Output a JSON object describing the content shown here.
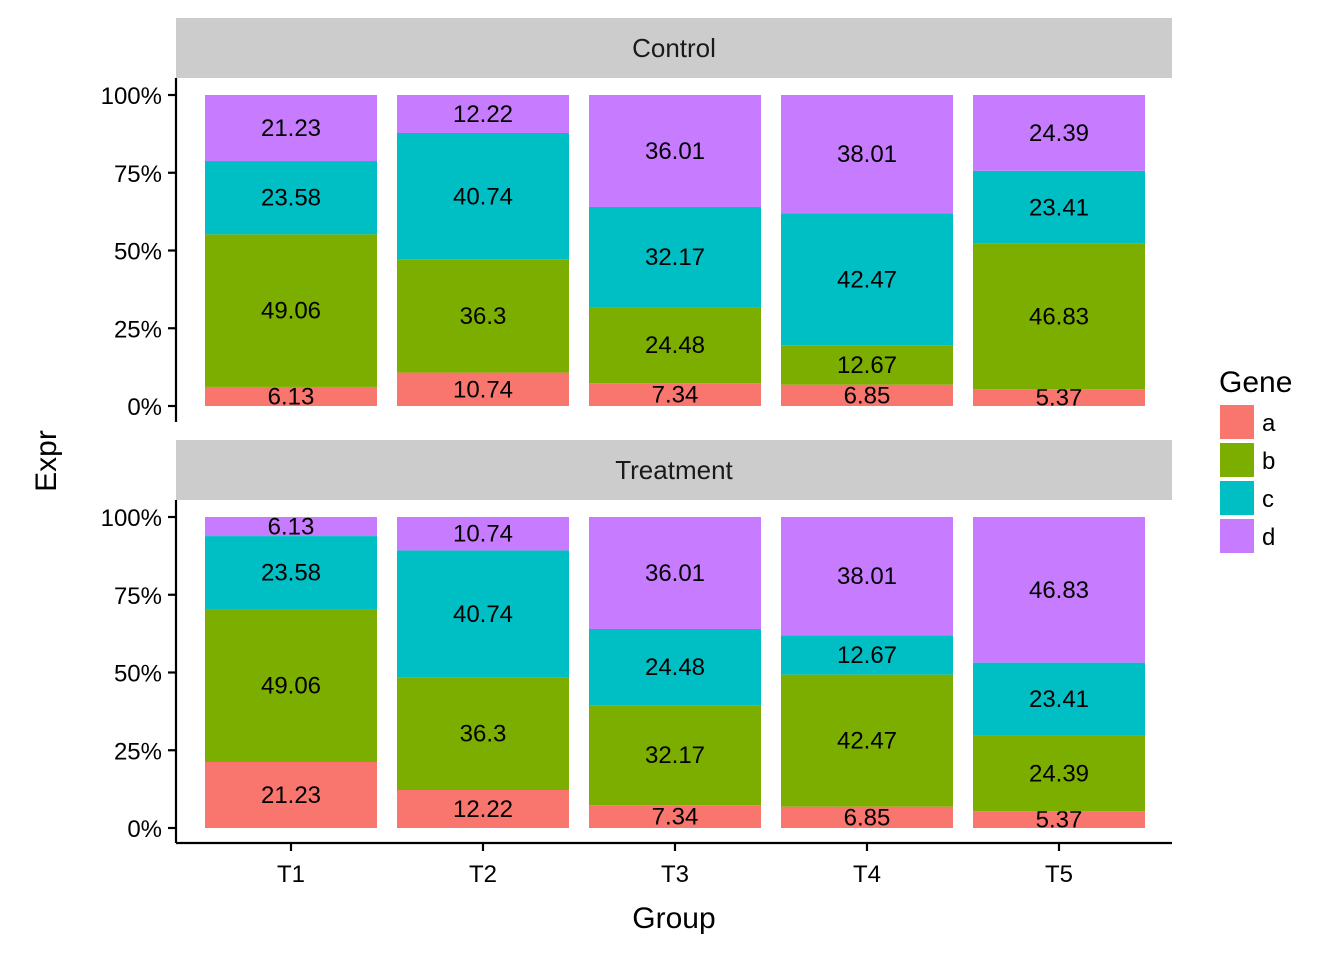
{
  "chart_data": {
    "type": "bar",
    "stacked": "percent",
    "categories": [
      "T1",
      "T2",
      "T3",
      "T4",
      "T5"
    ],
    "xlabel": "Group",
    "ylabel": "Expr",
    "ylim": [
      0,
      100
    ],
    "yticks": [
      "0%",
      "25%",
      "50%",
      "75%",
      "100%"
    ],
    "legend": {
      "title": "Gene",
      "position": "right",
      "entries": [
        "a",
        "b",
        "c",
        "d"
      ]
    },
    "colors": {
      "a": "#F8766D",
      "b": "#7CAE00",
      "c": "#00BFC4",
      "d": "#C77CFF"
    },
    "grid": false,
    "panels": [
      {
        "name": "Control",
        "series": [
          {
            "name": "a",
            "values": [
              6.13,
              10.74,
              7.34,
              6.85,
              5.37
            ]
          },
          {
            "name": "b",
            "values": [
              49.06,
              36.3,
              24.48,
              12.67,
              46.83
            ]
          },
          {
            "name": "c",
            "values": [
              23.58,
              40.74,
              32.17,
              42.47,
              23.41
            ]
          },
          {
            "name": "d",
            "values": [
              21.23,
              12.22,
              36.01,
              38.01,
              24.39
            ]
          }
        ]
      },
      {
        "name": "Treatment",
        "series": [
          {
            "name": "a",
            "values": [
              21.23,
              12.22,
              7.34,
              6.85,
              5.37
            ]
          },
          {
            "name": "b",
            "values": [
              49.06,
              36.3,
              32.17,
              42.47,
              24.39
            ]
          },
          {
            "name": "c",
            "values": [
              23.58,
              40.74,
              24.48,
              12.67,
              23.41
            ]
          },
          {
            "name": "d",
            "values": [
              6.13,
              10.74,
              36.01,
              38.01,
              46.83
            ]
          }
        ]
      }
    ]
  }
}
